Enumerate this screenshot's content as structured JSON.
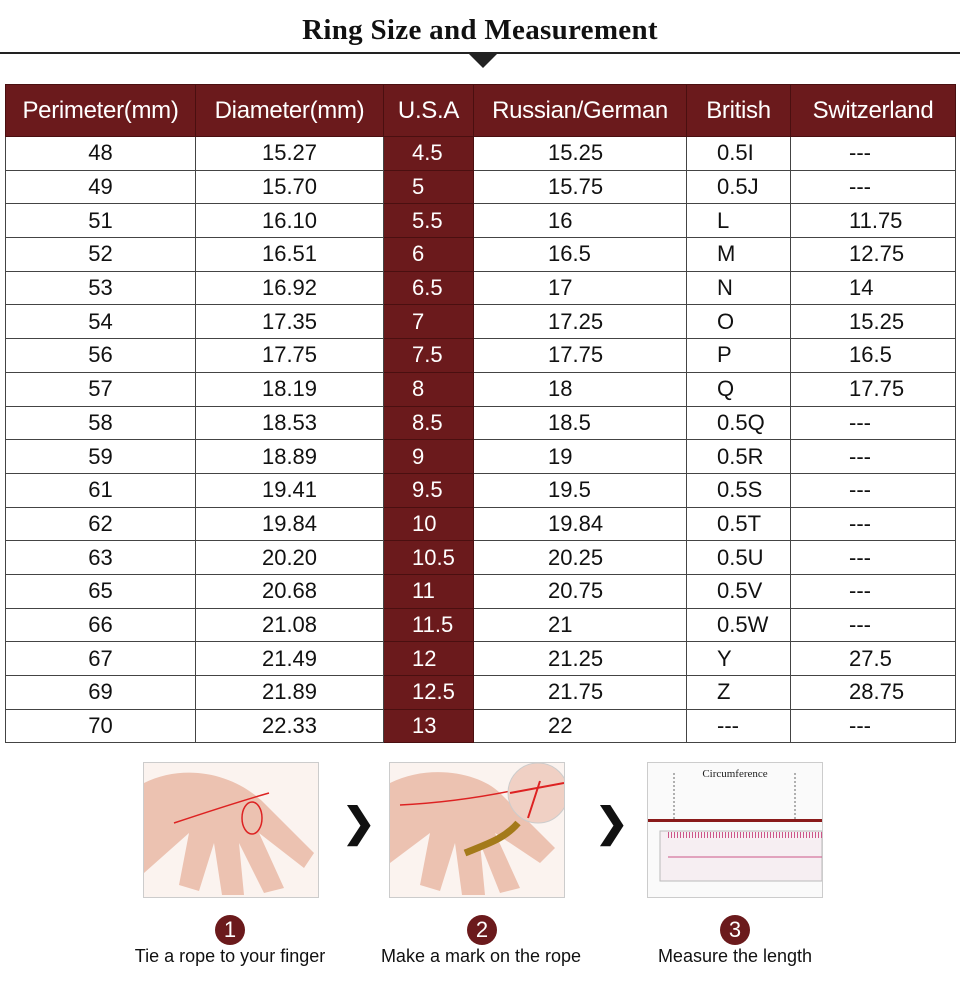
{
  "title": "Ring Size and Measurement",
  "colors": {
    "accent": "#6b1a1c"
  },
  "table": {
    "headers": [
      "Perimeter(mm)",
      "Diameter(mm)",
      "U.S.A",
      "Russian/German",
      "British",
      "Switzerland"
    ],
    "rows": [
      [
        "48",
        "15.27",
        "4.5",
        "15.25",
        "0.5I",
        "---"
      ],
      [
        "49",
        "15.70",
        "5",
        "15.75",
        "0.5J",
        "---"
      ],
      [
        "51",
        "16.10",
        "5.5",
        "16",
        "L",
        "11.75"
      ],
      [
        "52",
        "16.51",
        "6",
        "16.5",
        "M",
        "12.75"
      ],
      [
        "53",
        "16.92",
        "6.5",
        "17",
        "N",
        "14"
      ],
      [
        "54",
        "17.35",
        "7",
        "17.25",
        "O",
        "15.25"
      ],
      [
        "56",
        "17.75",
        "7.5",
        "17.75",
        "P",
        "16.5"
      ],
      [
        "57",
        "18.19",
        "8",
        "18",
        "Q",
        "17.75"
      ],
      [
        "58",
        "18.53",
        "8.5",
        "18.5",
        "0.5Q",
        "---"
      ],
      [
        "59",
        "18.89",
        "9",
        "19",
        "0.5R",
        "---"
      ],
      [
        "61",
        "19.41",
        "9.5",
        "19.5",
        "0.5S",
        "---"
      ],
      [
        "62",
        "19.84",
        "10",
        "19.84",
        "0.5T",
        "---"
      ],
      [
        "63",
        "20.20",
        "10.5",
        "20.25",
        "0.5U",
        "---"
      ],
      [
        "65",
        "20.68",
        "11",
        "20.75",
        "0.5V",
        "---"
      ],
      [
        "66",
        "21.08",
        "11.5",
        "21",
        "0.5W",
        "---"
      ],
      [
        "67",
        "21.49",
        "12",
        "21.25",
        "Y",
        "27.5"
      ],
      [
        "69",
        "21.89",
        "12.5",
        "21.75",
        "Z",
        "28.75"
      ],
      [
        "70",
        "22.33",
        "13",
        "22",
        "---",
        "---"
      ]
    ]
  },
  "steps": [
    {
      "number": "1",
      "caption": "Tie a rope to your finger"
    },
    {
      "number": "2",
      "caption": "Make a mark on the rope"
    },
    {
      "number": "3",
      "caption": "Measure the length",
      "image_label": "Circumference"
    }
  ],
  "step_arrow": "❯"
}
